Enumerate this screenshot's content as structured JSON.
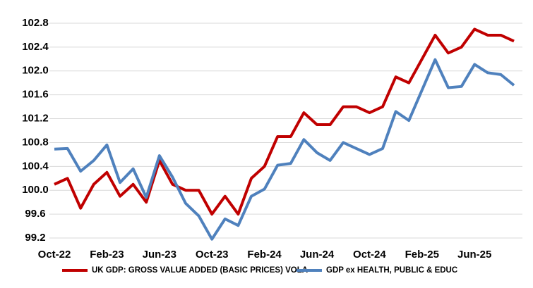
{
  "chart_data": {
    "type": "line",
    "categories": [
      "Oct-22",
      null,
      null,
      null,
      "Feb-23",
      null,
      null,
      null,
      "Jun-23",
      null,
      null,
      null,
      "Oct-23",
      null,
      null,
      null,
      "Feb-24",
      null,
      null,
      null,
      "Jun-24",
      null,
      null,
      null,
      "Oct-24",
      null,
      null,
      null,
      "Feb-25",
      null,
      null,
      null,
      "Jun-25",
      null,
      null,
      null
    ],
    "series": [
      {
        "name": "UK GDP: GROSS VALUE ADDED (BASIC PRICES) VOLA",
        "color": "#c00000",
        "values": [
          100.1,
          100.2,
          99.7,
          100.1,
          100.3,
          99.9,
          100.1,
          99.8,
          100.5,
          100.1,
          100.0,
          100.0,
          99.6,
          99.9,
          99.6,
          100.2,
          100.4,
          100.9,
          100.9,
          101.3,
          101.1,
          101.1,
          101.4,
          101.4,
          101.3,
          101.4,
          101.9,
          101.8,
          102.2,
          102.6,
          102.3,
          102.4,
          102.7,
          102.6,
          102.6,
          102.5
        ]
      },
      {
        "name": "GDP ex HEALTH, PUBLIC & EDUC",
        "color": "#4f81bd",
        "values": [
          100.69,
          100.7,
          100.32,
          100.5,
          100.76,
          100.13,
          100.36,
          99.88,
          100.58,
          100.22,
          99.78,
          99.57,
          99.18,
          99.52,
          99.41,
          99.9,
          100.02,
          100.42,
          100.45,
          100.85,
          100.63,
          100.5,
          100.8,
          100.7,
          100.6,
          100.7,
          101.32,
          101.17,
          101.68,
          102.19,
          101.72,
          101.74,
          102.11,
          101.97,
          101.94,
          101.76
        ]
      }
    ],
    "ylim": [
      99.2,
      102.8
    ],
    "yticks": [
      99.2,
      99.6,
      {
        "value": 100,
        "label": "100.0"
      },
      100.4,
      100.8,
      101.2,
      101.6,
      {
        "value": 102,
        "label": "102.0"
      },
      102.4,
      102.8
    ],
    "grid": true,
    "legend": "bottom"
  }
}
